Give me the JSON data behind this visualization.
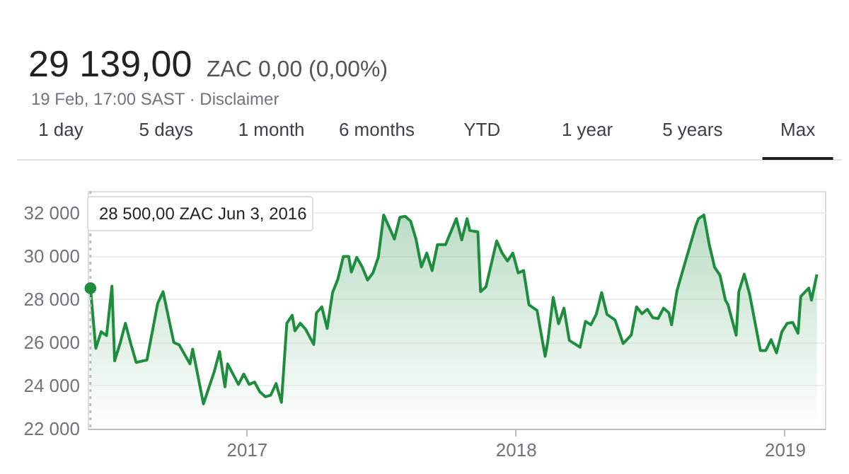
{
  "chart_data": {
    "type": "area",
    "title": "29 139,00",
    "subtitle": "ZAC 0,00 (0,00%)",
    "x": [
      2016.42,
      2016.44,
      2016.46,
      2016.48,
      2016.5,
      2016.51,
      2016.53,
      2016.55,
      2016.57,
      2016.59,
      2016.63,
      2016.67,
      2016.69,
      2016.73,
      2016.75,
      2016.79,
      2016.8,
      2016.84,
      2016.88,
      2016.9,
      2016.92,
      2016.93,
      2016.97,
      2016.99,
      2017.01,
      2017.03,
      2017.05,
      2017.07,
      2017.09,
      2017.11,
      2017.13,
      2017.15,
      2017.17,
      2017.18,
      2017.2,
      2017.22,
      2017.25,
      2017.26,
      2017.28,
      2017.3,
      2017.32,
      2017.34,
      2017.36,
      2017.38,
      2017.39,
      2017.41,
      2017.43,
      2017.45,
      2017.47,
      2017.49,
      2017.51,
      2017.55,
      2017.57,
      2017.59,
      2017.61,
      2017.63,
      2017.65,
      2017.67,
      2017.69,
      2017.71,
      2017.74,
      2017.78,
      2017.8,
      2017.82,
      2017.83,
      2017.86,
      2017.87,
      2017.89,
      2017.93,
      2017.95,
      2017.97,
      2017.99,
      2018.01,
      2018.03,
      2018.05,
      2018.08,
      2018.11,
      2018.12,
      2018.14,
      2018.16,
      2018.18,
      2018.2,
      2018.24,
      2018.26,
      2018.28,
      2018.3,
      2018.32,
      2018.34,
      2018.37,
      2018.4,
      2018.43,
      2018.45,
      2018.47,
      2018.49,
      2018.51,
      2018.53,
      2018.55,
      2018.57,
      2018.58,
      2018.6,
      2018.62,
      2018.67,
      2018.68,
      2018.7,
      2018.72,
      2018.74,
      2018.76,
      2018.78,
      2018.79,
      2018.82,
      2018.83,
      2018.85,
      2018.87,
      2018.91,
      2018.93,
      2018.95,
      2018.97,
      2018.99,
      2019.01,
      2019.03,
      2019.05,
      2019.06,
      2019.09,
      2019.1,
      2019.12
    ],
    "series": [
      {
        "color": "#1e8e3e",
        "values": [
          28500,
          25720,
          26490,
          26310,
          28600,
          25140,
          25940,
          26880,
          25940,
          25070,
          25180,
          27800,
          28340,
          25990,
          25880,
          25000,
          25680,
          23150,
          24630,
          25570,
          23940,
          25000,
          24050,
          24530,
          24050,
          24160,
          23700,
          23480,
          23550,
          24090,
          23220,
          26880,
          27250,
          26530,
          26880,
          26600,
          25900,
          27360,
          27640,
          26640,
          28300,
          28930,
          29970,
          29970,
          29250,
          29930,
          29490,
          28880,
          29210,
          29930,
          31890,
          30780,
          31780,
          31830,
          31610,
          30780,
          29490,
          30130,
          29320,
          30520,
          30520,
          31720,
          30740,
          31720,
          31170,
          31110,
          28340,
          28560,
          30690,
          30130,
          29760,
          30130,
          29210,
          29320,
          27730,
          27470,
          25350,
          26050,
          28080,
          26860,
          27580,
          26090,
          25770,
          26970,
          26810,
          27290,
          28300,
          27290,
          27030,
          25940,
          26330,
          27640,
          27320,
          27530,
          27140,
          27100,
          27580,
          27360,
          26810,
          28380,
          29250,
          31390,
          31720,
          31890,
          30520,
          29470,
          29100,
          27950,
          27730,
          26330,
          28340,
          29150,
          28230,
          25620,
          25620,
          26120,
          25510,
          26490,
          26880,
          26920,
          26420,
          28120,
          28510,
          27950,
          29140
        ]
      }
    ],
    "xlim": [
      2016.41,
      2019.15
    ],
    "xticks": [
      2017,
      2018,
      2019
    ],
    "ylim": [
      22000,
      33000
    ],
    "yticks": [
      {
        "value": 22000,
        "label": "22 000"
      },
      {
        "value": 24000,
        "label": "24 000"
      },
      {
        "value": 26000,
        "label": "26 000"
      },
      {
        "value": 28000,
        "label": "28 000"
      },
      {
        "value": 30000,
        "label": "30 000"
      },
      {
        "value": 32000,
        "label": "32 000"
      }
    ],
    "grid": "y",
    "ref_lines": [
      {
        "axis": "x",
        "value": 2016.42,
        "line_style": "dotted",
        "color": "#bdbdbd"
      }
    ],
    "annotations": [
      "19 Feb, 17:00 SAST · Disclaimer",
      "1 day",
      "5 days",
      "1 month",
      "6 months",
      "YTD",
      "1 year",
      "5 years",
      "Max",
      "28 500,00 ZAC  Jun 3, 2016"
    ]
  }
}
